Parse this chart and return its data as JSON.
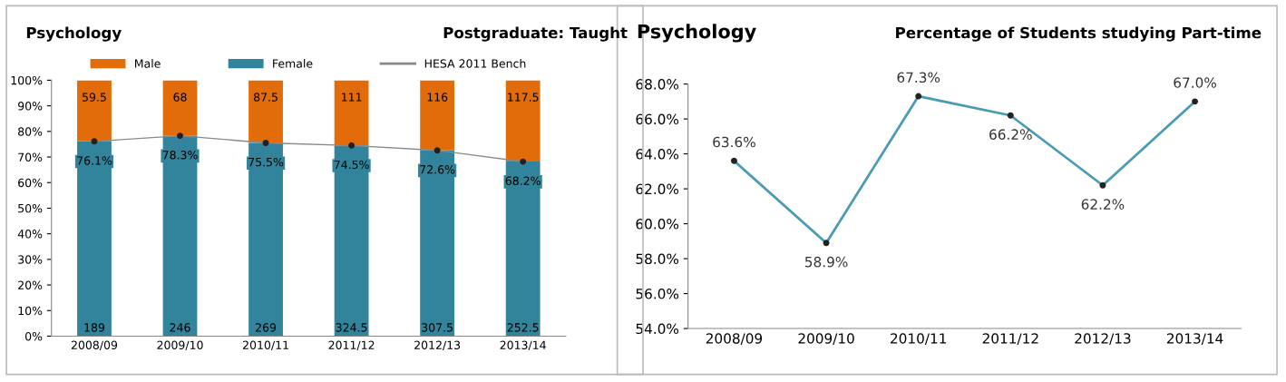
{
  "chart_data": [
    {
      "type": "bar",
      "title": "Psychology",
      "subtitle": "Postgraduate: Taught",
      "stacked": true,
      "categories": [
        "2008/09",
        "2009/10",
        "2010/11",
        "2011/12",
        "2012/13",
        "2013/14"
      ],
      "series": [
        {
          "name": "Female",
          "color": "#31849b",
          "values": [
            76.1,
            78.3,
            75.5,
            74.5,
            72.6,
            68.2
          ]
        },
        {
          "name": "Male",
          "color": "#e36c0a",
          "values": [
            23.9,
            21.7,
            24.5,
            25.5,
            27.4,
            31.8
          ]
        },
        {
          "name": "HESA 2011 Bench",
          "type": "line",
          "color": "#888888",
          "marker": "circle",
          "values": [
            76.1,
            78.3,
            75.5,
            74.5,
            72.6,
            68.2
          ],
          "value_labels": [
            "76.1%",
            "78.3%",
            "75.5%",
            "74.5%",
            "72.6%",
            "68.2%"
          ]
        }
      ],
      "ylim": [
        0,
        100
      ],
      "yticks": [
        {
          "value": 0,
          "label": "0%"
        },
        {
          "value": 10,
          "label": "10%"
        },
        {
          "value": 20,
          "label": "20%"
        },
        {
          "value": 30,
          "label": "30%"
        },
        {
          "value": 40,
          "label": "40%"
        },
        {
          "value": 50,
          "label": "50%"
        },
        {
          "value": 60,
          "label": "60%"
        },
        {
          "value": 70,
          "label": "70%"
        },
        {
          "value": 80,
          "label": "80%"
        },
        {
          "value": 90,
          "label": "90%"
        },
        {
          "value": 100,
          "label": "100%"
        }
      ],
      "annotations": [
        "189",
        "246",
        "269",
        "324.5",
        "307.5",
        "252.5",
        "59.5",
        "68",
        "87.5",
        "111",
        "116",
        "117.5"
      ],
      "legend": "top",
      "grid": false
    },
    {
      "type": "line",
      "title": "Psychology",
      "subtitle": "Percentage of Students studying Part-time",
      "categories": [
        "2008/09",
        "2009/10",
        "2010/11",
        "2011/12",
        "2012/13",
        "2013/14"
      ],
      "series": [
        {
          "color": "#4a9bb5",
          "values": [
            63.6,
            58.9,
            67.3,
            66.2,
            62.2,
            67.0
          ],
          "value_labels": [
            "63.6%",
            "58.9%",
            "67.3%",
            "66.2%",
            "62.2%",
            "67.0%"
          ]
        }
      ],
      "marker": "circle",
      "ylim": [
        54,
        68
      ],
      "yticks": [
        {
          "value": 54,
          "label": "54.0%"
        },
        {
          "value": 56,
          "label": "56.0%"
        },
        {
          "value": 58,
          "label": "58.0%"
        },
        {
          "value": 60,
          "label": "60.0%"
        },
        {
          "value": 62,
          "label": "62.0%"
        },
        {
          "value": 64,
          "label": "64.0%"
        },
        {
          "value": 66,
          "label": "66.0%"
        },
        {
          "value": 68,
          "label": "68.0%"
        }
      ],
      "grid": false
    }
  ]
}
